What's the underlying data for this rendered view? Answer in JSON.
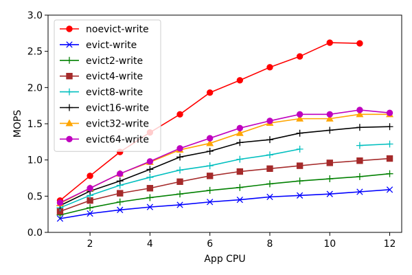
{
  "chart_data": {
    "type": "line",
    "xlabel": "App CPU",
    "ylabel": "MOPS",
    "xlim": [
      0.6,
      12.4
    ],
    "ylim": [
      0.0,
      3.0
    ],
    "xticks": [
      2,
      4,
      6,
      8,
      10,
      12
    ],
    "yticks": [
      0.0,
      0.5,
      1.0,
      1.5,
      2.0,
      2.5,
      3.0
    ],
    "ytick_labels": [
      "0.0",
      "0.5",
      "1.0",
      "1.5",
      "2.0",
      "2.5",
      "3.0"
    ],
    "grid": false,
    "legend_position": "top-left",
    "series": [
      {
        "name": "noevict-write",
        "color": "#ff0000",
        "marker": "circle",
        "points": [
          [
            1,
            0.44
          ],
          [
            2,
            0.78
          ],
          [
            3,
            1.11
          ],
          [
            4,
            1.38
          ],
          [
            5,
            1.63
          ],
          [
            6,
            1.93
          ],
          [
            7,
            2.1
          ],
          [
            8,
            2.28
          ],
          [
            9,
            2.43
          ],
          [
            10,
            2.62
          ],
          [
            11,
            2.61
          ]
        ]
      },
      {
        "name": "evict-write",
        "color": "#0000ff",
        "marker": "x",
        "points": [
          [
            1,
            0.19
          ],
          [
            2,
            0.26
          ],
          [
            3,
            0.31
          ],
          [
            4,
            0.35
          ],
          [
            5,
            0.38
          ],
          [
            6,
            0.42
          ],
          [
            7,
            0.45
          ],
          [
            8,
            0.49
          ],
          [
            9,
            0.51
          ],
          [
            10,
            0.53
          ],
          [
            11,
            0.56
          ],
          [
            12,
            0.59
          ]
        ]
      },
      {
        "name": "evict2-write",
        "color": "#008000",
        "marker": "plus",
        "points": [
          [
            1,
            0.24
          ],
          [
            2,
            0.34
          ],
          [
            3,
            0.42
          ],
          [
            4,
            0.48
          ],
          [
            5,
            0.53
          ],
          [
            6,
            0.58
          ],
          [
            7,
            0.62
          ],
          [
            8,
            0.67
          ],
          [
            9,
            0.71
          ],
          [
            10,
            0.74
          ],
          [
            11,
            0.77
          ],
          [
            12,
            0.81
          ]
        ]
      },
      {
        "name": "evict4-write",
        "color": "#a52a2a",
        "marker": "square",
        "points": [
          [
            1,
            0.29
          ],
          [
            2,
            0.44
          ],
          [
            3,
            0.54
          ],
          [
            4,
            0.61
          ],
          [
            5,
            0.7
          ],
          [
            6,
            0.78
          ],
          [
            7,
            0.84
          ],
          [
            8,
            0.88
          ],
          [
            9,
            0.92
          ],
          [
            10,
            0.96
          ],
          [
            11,
            0.99
          ],
          [
            12,
            1.02
          ]
        ]
      },
      {
        "name": "evict8-write",
        "color": "#00bfbf",
        "marker": "plus",
        "points": [
          [
            1,
            0.34
          ],
          [
            2,
            0.51
          ],
          [
            3,
            0.65
          ],
          [
            4,
            0.76
          ],
          [
            5,
            0.86
          ],
          [
            6,
            0.92
          ],
          [
            7,
            1.01
          ],
          [
            8,
            1.07
          ],
          [
            9,
            1.15
          ],
          [
            10,
            null
          ],
          [
            11,
            1.2
          ],
          [
            12,
            1.22
          ]
        ]
      },
      {
        "name": "evict16-write",
        "color": "#000000",
        "marker": "plus",
        "points": [
          [
            1,
            0.37
          ],
          [
            2,
            0.57
          ],
          [
            3,
            0.71
          ],
          [
            4,
            0.87
          ],
          [
            5,
            1.04
          ],
          [
            6,
            1.12
          ],
          [
            7,
            1.24
          ],
          [
            8,
            1.28
          ],
          [
            9,
            1.37
          ],
          [
            10,
            1.41
          ],
          [
            11,
            1.45
          ],
          [
            12,
            1.46
          ]
        ]
      },
      {
        "name": "evict32-write",
        "color": "#ffa500",
        "marker": "triangle",
        "points": [
          [
            1,
            0.4
          ],
          [
            2,
            0.61
          ],
          [
            3,
            0.81
          ],
          [
            4,
            0.97
          ],
          [
            5,
            1.14
          ],
          [
            6,
            1.23
          ],
          [
            7,
            1.37
          ],
          [
            8,
            1.51
          ],
          [
            9,
            1.57
          ],
          [
            10,
            1.57
          ],
          [
            11,
            1.63
          ],
          [
            12,
            1.63
          ]
        ]
      },
      {
        "name": "evict64-write",
        "color": "#bf00bf",
        "marker": "circle",
        "points": [
          [
            1,
            0.41
          ],
          [
            2,
            0.61
          ],
          [
            3,
            0.81
          ],
          [
            4,
            0.98
          ],
          [
            5,
            1.16
          ],
          [
            6,
            1.3
          ],
          [
            7,
            1.44
          ],
          [
            8,
            1.54
          ],
          [
            9,
            1.63
          ],
          [
            10,
            1.63
          ],
          [
            11,
            1.69
          ],
          [
            12,
            1.65
          ]
        ]
      }
    ]
  }
}
